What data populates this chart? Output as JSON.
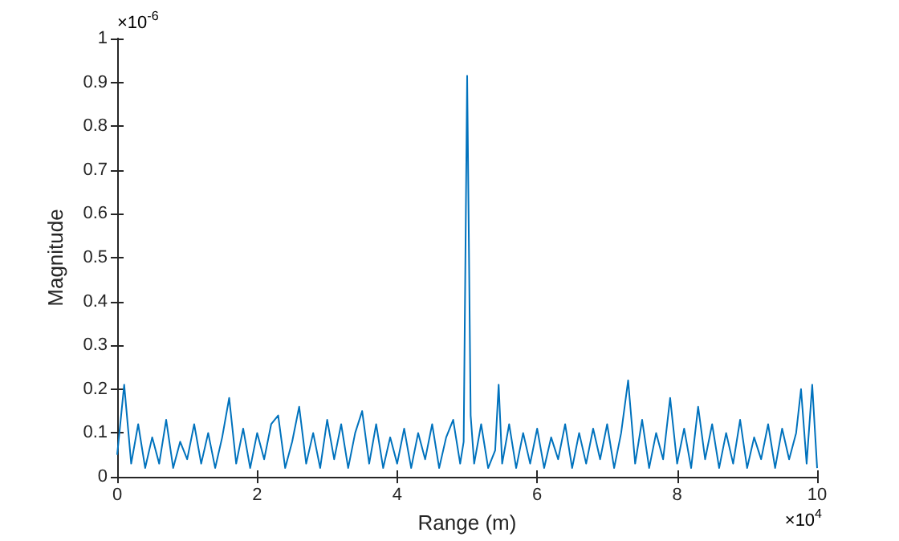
{
  "chart_data": {
    "type": "line",
    "xlabel": "Range (m)",
    "ylabel": "Magnitude",
    "annotations": [
      "×10$^{-6}$",
      "×10$^{4}$"
    ],
    "x": [
      0,
      0.1,
      0.2,
      0.3,
      0.4,
      0.5,
      0.6,
      0.7,
      0.8,
      0.9,
      1.0,
      1.1,
      1.2,
      1.3,
      1.4,
      1.5,
      1.6,
      1.7,
      1.8,
      1.9,
      2.0,
      2.1,
      2.2,
      2.3,
      2.4,
      2.5,
      2.6,
      2.7,
      2.8,
      2.9,
      3.0,
      3.1,
      3.2,
      3.3,
      3.4,
      3.5,
      3.6,
      3.7,
      3.8,
      3.9,
      4.0,
      4.1,
      4.2,
      4.3,
      4.4,
      4.5,
      4.6,
      4.7,
      4.8,
      4.9,
      4.95,
      5.0,
      5.05,
      5.1,
      5.2,
      5.3,
      5.4,
      5.45,
      5.5,
      5.6,
      5.7,
      5.8,
      5.9,
      6.0,
      6.1,
      6.2,
      6.3,
      6.4,
      6.5,
      6.6,
      6.7,
      6.8,
      6.9,
      7.0,
      7.1,
      7.2,
      7.3,
      7.4,
      7.5,
      7.6,
      7.7,
      7.8,
      7.9,
      8.0,
      8.1,
      8.2,
      8.3,
      8.4,
      8.5,
      8.6,
      8.7,
      8.8,
      8.9,
      9.0,
      9.1,
      9.2,
      9.3,
      9.4,
      9.5,
      9.6,
      9.7,
      9.77,
      9.85,
      9.93,
      10
    ],
    "series": [
      {
        "color": "#0072bd",
        "values": [
          0.05,
          0.21,
          0.03,
          0.12,
          0.02,
          0.09,
          0.03,
          0.13,
          0.02,
          0.08,
          0.04,
          0.12,
          0.03,
          0.1,
          0.02,
          0.09,
          0.18,
          0.03,
          0.11,
          0.02,
          0.1,
          0.04,
          0.12,
          0.14,
          0.02,
          0.08,
          0.16,
          0.03,
          0.1,
          0.02,
          0.13,
          0.04,
          0.12,
          0.02,
          0.1,
          0.15,
          0.03,
          0.12,
          0.02,
          0.09,
          0.03,
          0.11,
          0.02,
          0.1,
          0.04,
          0.12,
          0.02,
          0.09,
          0.13,
          0.03,
          0.08,
          0.915,
          0.14,
          0.03,
          0.12,
          0.02,
          0.06,
          0.21,
          0.03,
          0.12,
          0.02,
          0.1,
          0.03,
          0.11,
          0.02,
          0.09,
          0.04,
          0.12,
          0.02,
          0.1,
          0.03,
          0.11,
          0.04,
          0.12,
          0.02,
          0.1,
          0.22,
          0.03,
          0.13,
          0.02,
          0.1,
          0.04,
          0.18,
          0.03,
          0.11,
          0.02,
          0.16,
          0.04,
          0.12,
          0.02,
          0.1,
          0.03,
          0.13,
          0.02,
          0.09,
          0.04,
          0.12,
          0.02,
          0.11,
          0.04,
          0.1,
          0.2,
          0.03,
          0.21,
          0.02
        ]
      }
    ],
    "xlim": [
      0,
      10
    ],
    "xticks": [
      0,
      2,
      4,
      6,
      8,
      10
    ],
    "ylim": [
      0,
      1
    ],
    "yticks": [
      0,
      0.1,
      0.2,
      0.3,
      0.4,
      0.5,
      0.6,
      0.7,
      0.8,
      0.9,
      1
    ],
    "grid": false,
    "legend": false,
    "marker": "none",
    "line_style": "solid"
  }
}
